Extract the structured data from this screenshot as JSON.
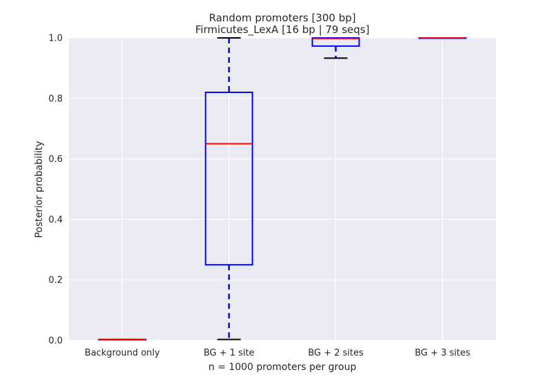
{
  "chart_data": {
    "type": "box",
    "title": "Random promoters [300 bp]",
    "subtitle": "Firmicutes_LexA [16 bp | 79 seqs]",
    "xlabel": "n = 1000 promoters per group",
    "ylabel": "Posterior probability",
    "ylim": [
      0.0,
      1.0
    ],
    "yticks": [
      "0.0",
      "0.2",
      "0.4",
      "0.6",
      "0.8",
      "1.0"
    ],
    "ytick_values": [
      0.0,
      0.2,
      0.4,
      0.6,
      0.8,
      1.0
    ],
    "grid": true,
    "categories": [
      "Background only",
      "BG + 1 site",
      "BG + 2 sites",
      "BG + 3 sites"
    ],
    "boxes": [
      {
        "category": "Background only",
        "whisker_low": 0.003,
        "q1": 0.003,
        "median": 0.003,
        "q3": 0.003,
        "whisker_high": 0.003
      },
      {
        "category": "BG + 1 site",
        "whisker_low": 0.003,
        "q1": 0.25,
        "median": 0.65,
        "q3": 0.82,
        "whisker_high": 1.0
      },
      {
        "category": "BG + 2 sites",
        "whisker_low": 0.933,
        "q1": 0.973,
        "median": 0.998,
        "q3": 1.0,
        "whisker_high": 1.0
      },
      {
        "category": "BG + 3 sites",
        "whisker_low": 1.0,
        "q1": 1.0,
        "median": 1.0,
        "q3": 1.0,
        "whisker_high": 1.0
      }
    ],
    "colors": {
      "plot_background": "#eaeaf2",
      "grid": "#ffffff",
      "box": "#0000ff",
      "median": "#ff0000",
      "cap": "#000000"
    }
  }
}
